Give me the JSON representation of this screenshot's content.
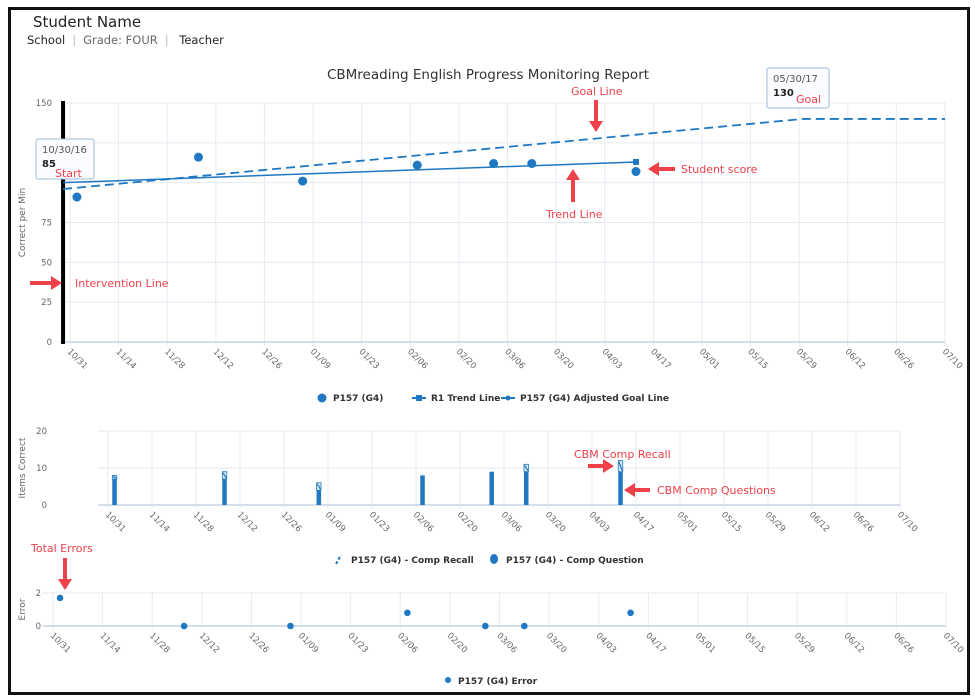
{
  "header": {
    "student_name": "Student Name",
    "school": "School",
    "grade": "Grade: FOUR",
    "teacher": "Teacher"
  },
  "colors": {
    "series": "#1f78c1",
    "annotation": "#f0404a",
    "grid": "#e6ebf2"
  },
  "chart_data": [
    {
      "type": "line",
      "title": "CBMreading English Progress Monitoring Report",
      "ylabel": "Correct per Min",
      "ylim": [
        0,
        150
      ],
      "ytick_labels": [
        "0",
        "25",
        "50",
        "75",
        "150"
      ],
      "ytick_values": [
        0,
        25,
        50,
        75,
        150
      ],
      "gridlines": [
        0,
        25,
        50,
        75,
        100,
        125,
        150
      ],
      "xtick_labels": [
        "10/31",
        "11/14",
        "11/28",
        "12/12",
        "12/26",
        "01/09",
        "01/23",
        "02/06",
        "02/20",
        "03/06",
        "03/20",
        "04/03",
        "04/17",
        "05/01",
        "05/15",
        "05/29",
        "06/12",
        "06/26",
        "07/10"
      ],
      "grid": true,
      "legend_position": "bottom",
      "series": [
        {
          "name": "P157 (G4)",
          "kind": "scatter",
          "x": [
            "11/02",
            "12/07",
            "01/06",
            "02/08",
            "03/02",
            "03/13",
            "04/12"
          ],
          "y": [
            91,
            116,
            101,
            111,
            112,
            112,
            107
          ]
        },
        {
          "name": "R1 Trend Line",
          "kind": "line",
          "x": [
            "10/29",
            "04/12"
          ],
          "y": [
            100,
            113
          ]
        },
        {
          "name": "P157 (G4) Adjusted Goal Line",
          "kind": "dashed",
          "x": [
            "10/29",
            "05/30",
            "07/10"
          ],
          "y": [
            96,
            140,
            140
          ]
        }
      ],
      "intervention_line": "10/29",
      "tooltips": [
        {
          "date": "10/30/16",
          "value": "85",
          "label": "Start"
        },
        {
          "date": "05/30/17",
          "value": "130",
          "label": "Goal"
        }
      ],
      "annotations": [
        "Goal Line",
        "Student score",
        "Trend Line",
        "Intervention Line"
      ]
    },
    {
      "type": "bar",
      "ylabel": "Items Correct",
      "ylim": [
        0,
        20
      ],
      "ytick_labels": [
        "0",
        "10",
        "20"
      ],
      "ytick_values": [
        0,
        10,
        20
      ],
      "xtick_labels": [
        "10/31",
        "11/14",
        "11/28",
        "12/12",
        "12/26",
        "01/09",
        "01/23",
        "02/06",
        "02/20",
        "03/06",
        "03/20",
        "04/03",
        "04/17",
        "05/01",
        "05/15",
        "05/29",
        "06/12",
        "06/26",
        "07/10"
      ],
      "grid": true,
      "legend_position": "bottom",
      "x": [
        "11/02",
        "12/07",
        "01/06",
        "02/08",
        "03/02",
        "03/13",
        "04/12"
      ],
      "series": [
        {
          "name": "P157 (G4) - Comp Question",
          "values": [
            7,
            7,
            4,
            8,
            9,
            9,
            9
          ]
        },
        {
          "name": "P157 (G4) - Comp Recall",
          "values": [
            1,
            2,
            2,
            0,
            0,
            2,
            3
          ]
        }
      ],
      "annotations": [
        "CBM Comp Recall",
        "CBM Comp Questions"
      ]
    },
    {
      "type": "scatter",
      "ylabel": "Error",
      "ylim": [
        0,
        2
      ],
      "ytick_labels": [
        "0",
        "2"
      ],
      "ytick_values": [
        0,
        2
      ],
      "xtick_labels": [
        "10/31",
        "11/14",
        "11/28",
        "12/12",
        "12/26",
        "01/09",
        "01/23",
        "02/06",
        "02/20",
        "03/06",
        "03/20",
        "04/03",
        "04/17",
        "05/01",
        "05/15",
        "05/29",
        "06/12",
        "06/26",
        "07/10"
      ],
      "grid": true,
      "legend_position": "bottom",
      "series": [
        {
          "name": "P157 (G4) Error",
          "x": [
            "11/02",
            "12/07",
            "01/06",
            "02/08",
            "03/02",
            "03/13",
            "04/12"
          ],
          "y": [
            1.7,
            0,
            0,
            0.8,
            0,
            0,
            0.8
          ]
        }
      ],
      "annotations": [
        "Total Errors"
      ]
    }
  ]
}
